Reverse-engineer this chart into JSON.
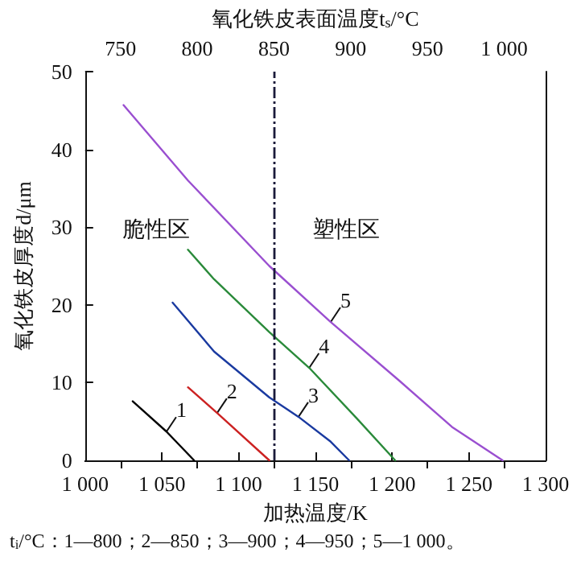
{
  "chart_data": {
    "type": "line",
    "x2label": "氧化铁皮表面温度t$_{s}$/°C",
    "xlabel": "加热温度/K",
    "ylabel": "氧化铁皮厚度d/μm",
    "xlim": [
      1000,
      1300
    ],
    "xticks": [
      {
        "value": 1000,
        "label": "1 000"
      },
      {
        "value": 1050,
        "label": "1 050"
      },
      {
        "value": 1100,
        "label": "1 100"
      },
      {
        "value": 1150,
        "label": "1 150"
      },
      {
        "value": 1200,
        "label": "1 200"
      },
      {
        "value": 1250,
        "label": "1 250"
      },
      {
        "value": 1300,
        "label": "1 300"
      }
    ],
    "x2lim": [
      727,
      1027
    ],
    "x2ticks": [
      750,
      800,
      850,
      900,
      950,
      {
        "value": 1000,
        "label": "1 000"
      }
    ],
    "ylim": [
      0,
      50
    ],
    "yticks": [
      0,
      10,
      20,
      30,
      40,
      50
    ],
    "grid": false,
    "marker": "none",
    "line_style": "solid",
    "series": [
      {
        "color": "#000000",
        "x": [
          1031,
          1053,
          1071
        ],
        "values": [
          7.6,
          3.7,
          0
        ]
      },
      {
        "color": "#cc2222",
        "x": [
          1067,
          1086,
          1120
        ],
        "values": [
          9.4,
          6.1,
          0
        ]
      },
      {
        "color": "#1a3aa0",
        "x": [
          1057,
          1084,
          1120,
          1139,
          1160,
          1172
        ],
        "values": [
          20.3,
          14.0,
          8.1,
          5.6,
          2.4,
          0
        ]
      },
      {
        "color": "#2a8a3a",
        "x": [
          1067,
          1084,
          1120,
          1146,
          1177,
          1202
        ],
        "values": [
          27.1,
          23.3,
          16.5,
          11.9,
          5.4,
          0
        ]
      },
      {
        "color": "#9a4fd0",
        "x": [
          1025,
          1067,
          1120,
          1160,
          1205,
          1239,
          1272
        ],
        "values": [
          45.7,
          36.0,
          25.0,
          17.8,
          10.2,
          4.3,
          0
        ]
      }
    ],
    "ref_lines": [
      {
        "axis": "x",
        "value": 1123,
        "color": "#1a1a3a",
        "line_style": "dashed"
      }
    ],
    "annotations": [
      {
        "text": "1",
        "x": 1053,
        "y": 3.7
      },
      {
        "text": "2",
        "x": 1086,
        "y": 6.1
      },
      {
        "text": "3",
        "x": 1139,
        "y": 5.6
      },
      {
        "text": "4",
        "x": 1146,
        "y": 11.9
      },
      {
        "text": "5",
        "x": 1160,
        "y": 17.8
      },
      "脆性区",
      "塑性区",
      "t$_{i}$/°C：1—800；2—850；3—900；4—950；5—1 000。"
    ]
  }
}
